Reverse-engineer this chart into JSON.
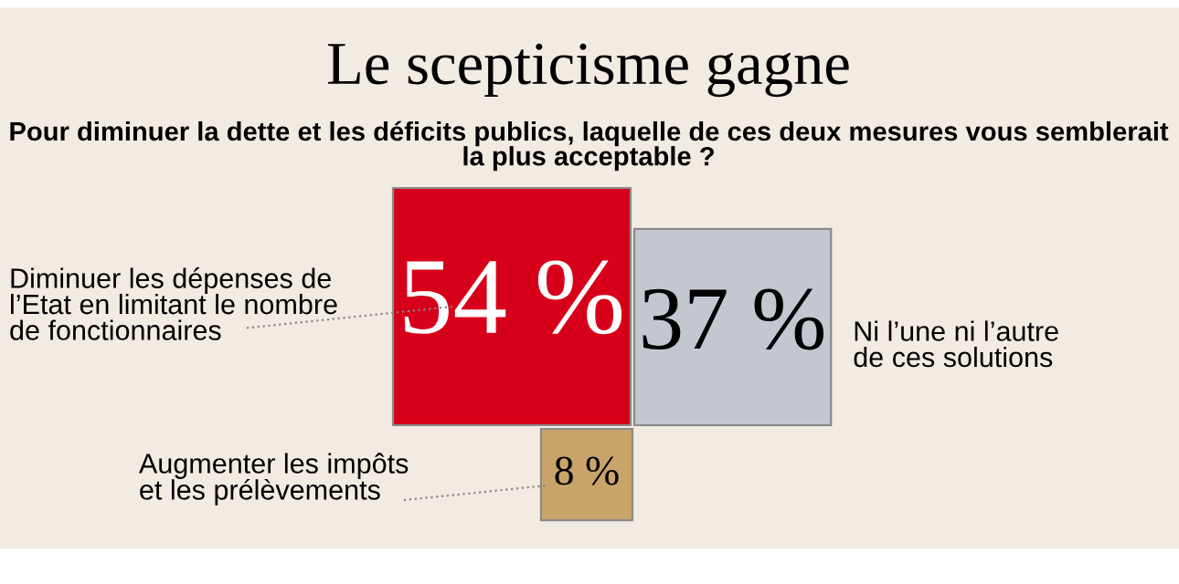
{
  "chart_data": {
    "type": "other",
    "title": "Le scepticisme gagne",
    "subtitle": "Pour diminuer la dette et les déficits publics, laquelle de ces deux mesures vous semblerait la plus acceptable ?",
    "categories": [
      "Diminuer les dépenses de\nl’Etat en limitant le nombre\nde fonctionnaires",
      "Ni l’une ni l’autre\nde ces solutions",
      "Augmenter les impôts\net les prélèvements"
    ],
    "values": [
      54,
      37,
      8
    ],
    "value_labels": [
      "54 %",
      "37 %",
      "8 %"
    ],
    "colors": [
      "#d7001a",
      "#c3c8d0",
      "#c9a46a"
    ]
  }
}
